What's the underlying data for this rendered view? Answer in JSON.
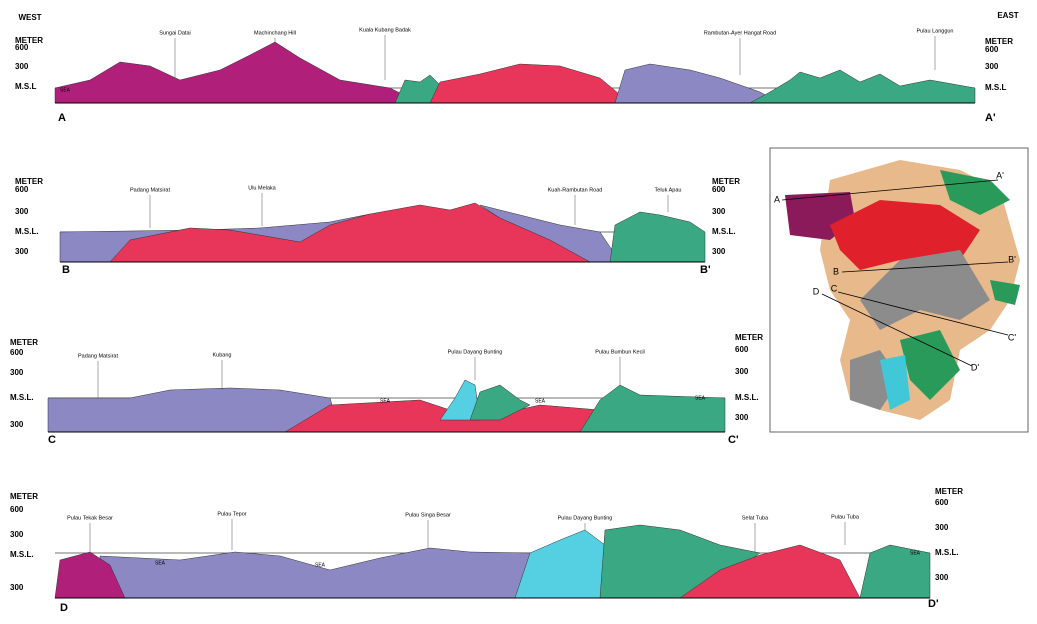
{
  "compass": {
    "west": "WEST",
    "east": "EAST"
  },
  "sections": [
    {
      "left_axis": [
        "METER",
        "600",
        "300",
        "M.S.L"
      ],
      "right_axis": [
        "METER",
        "600",
        "300",
        "M.S.L"
      ],
      "places": [
        "Sungai Datai",
        "Machinchang Hill",
        "Kuala Kubang Badak",
        "Rambutan-Ayer Hangat Road",
        "Pulau Langgun"
      ],
      "sea_labels": [
        "SEA"
      ],
      "start": "A",
      "end": "A'"
    },
    {
      "left_axis": [
        "METER",
        "600",
        "300",
        "M.S.L.",
        "300"
      ],
      "right_axis": [
        "METER",
        "600",
        "300",
        "M.S.L.",
        "300"
      ],
      "places": [
        "Padang Matsirat",
        "Ulu Melaka",
        "Kuah-Rambutan Road",
        "Teluk Apau"
      ],
      "sea_labels": [],
      "start": "B",
      "end": "B'"
    },
    {
      "left_axis": [
        "METER",
        "600",
        "300",
        "M.S.L.",
        "300"
      ],
      "right_axis": [
        "METER",
        "600",
        "300",
        "M.S.L.",
        "300"
      ],
      "places": [
        "Padang Matsirat",
        "Kubang",
        "Pulau Dayang Bunting",
        "Pulau Bumbun Kecil"
      ],
      "sea_labels": [
        "SEA",
        "SEA",
        "SEA"
      ],
      "start": "C",
      "end": "C'"
    },
    {
      "left_axis": [
        "METER",
        "600",
        "300",
        "M.S.L.",
        "300"
      ],
      "right_axis": [
        "METER",
        "600",
        "300",
        "M.S.L.",
        "300"
      ],
      "places": [
        "Pulau Tekak Besar",
        "Pulau Tepor",
        "Pulau Singa Besar",
        "Pulau Dayang Bunting",
        "Selat Tuba",
        "Pulau Tuba"
      ],
      "sea_labels": [
        "SEA",
        "SEA",
        "SEA"
      ],
      "start": "D",
      "end": "D'"
    }
  ],
  "map": {
    "labels": [
      "A",
      "A'",
      "B",
      "B'",
      "C",
      "C'",
      "D",
      "D'"
    ]
  }
}
